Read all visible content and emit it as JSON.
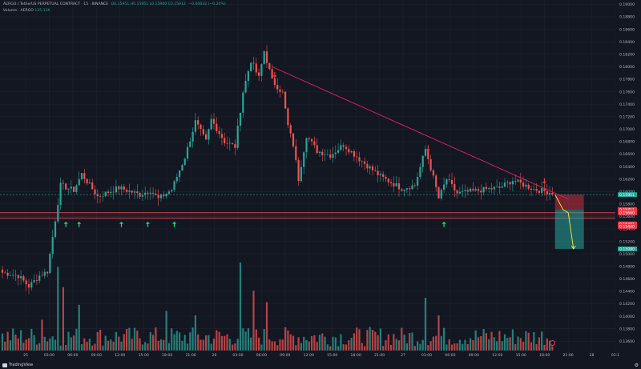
{
  "header": {
    "symbol": "AERGO / TetherUS PERPETUAL CONTRACT · 15 · BINANCE",
    "ohlc": "O0.15951 H0.15951 L0.15900 C0.15912",
    "change": "−0.00032 (−0.20%)",
    "volume_label": "Volume · AERGO",
    "volume_value": "135.11K"
  },
  "colors": {
    "up": "#26a69a",
    "down": "#ef5350",
    "trendline": "#e91e63",
    "up_arrow": "#00e676",
    "down_arrow": "#f23645",
    "target": "#ffeb3b",
    "support": "#f7525f",
    "last_price": "#26a69a"
  },
  "footer": {
    "brand": "TradingView"
  },
  "chart_data": {
    "type": "candlestick",
    "y_axis": {
      "side": "right",
      "ticks": [
        0.19,
        0.188,
        0.186,
        0.184,
        0.182,
        0.18,
        0.178,
        0.176,
        0.174,
        0.172,
        0.17,
        0.168,
        0.166,
        0.164,
        0.162,
        0.16,
        0.158,
        0.156,
        0.154,
        0.152,
        0.15,
        0.148,
        0.146,
        0.144,
        0.142,
        0.14,
        0.138,
        0.136
      ],
      "range": [
        0.1345,
        0.1907
      ],
      "labels": [
        {
          "value": 0.15951,
          "text": "0.15951",
          "color": "#26a69a"
        },
        {
          "value": 0.15711,
          "text": "0.15711",
          "color": "#f23645"
        },
        {
          "value": 0.1566,
          "text": "0.15660",
          "color": "#f23645"
        },
        {
          "value": 0.15481,
          "text": "0.15481",
          "color": "#f23645"
        },
        {
          "value": 0.1544,
          "text": "0.15440",
          "color": "#f23645"
        },
        {
          "value": 0.1508,
          "text": "0.15080",
          "color": "#26a69a"
        }
      ]
    },
    "x_axis": {
      "ticks": [
        "25",
        "03:00",
        "06:00",
        "09:00",
        "12:00",
        "15:00",
        "18:00",
        "21:00",
        "26",
        "03:00",
        "06:00",
        "09:00",
        "12:00",
        "15:00",
        "18:00",
        "21:00",
        "27",
        "03:00",
        "06:00",
        "09:00",
        "12:00",
        "15:00",
        "18:00",
        "21:00",
        "28",
        "03:1"
      ]
    },
    "key_levels": {
      "support_upper": 0.1566,
      "support_lower": 0.1557,
      "dotted_level": 0.15951,
      "short_entry": 0.15711,
      "target": 0.1508
    },
    "trendline": [
      {
        "time": "26 06:00",
        "price": 0.18
      },
      {
        "time": "27 20:00",
        "price": 0.1588
      }
    ],
    "candle_path": [
      {
        "t": 0,
        "price": 0.147
      },
      {
        "t": 6,
        "price": 0.1465
      },
      {
        "t": 10,
        "price": 0.1448
      },
      {
        "t": 14,
        "price": 0.1465
      },
      {
        "t": 17,
        "price": 0.1472
      },
      {
        "t": 22,
        "price": 0.161
      },
      {
        "t": 27,
        "price": 0.1602
      },
      {
        "t": 30,
        "price": 0.1628
      },
      {
        "t": 36,
        "price": 0.1592
      },
      {
        "t": 44,
        "price": 0.1606
      },
      {
        "t": 52,
        "price": 0.1595
      },
      {
        "t": 56,
        "price": 0.1602
      },
      {
        "t": 59,
        "price": 0.1588
      },
      {
        "t": 64,
        "price": 0.1603
      },
      {
        "t": 69,
        "price": 0.1655
      },
      {
        "t": 73,
        "price": 0.1712
      },
      {
        "t": 77,
        "price": 0.168
      },
      {
        "t": 79,
        "price": 0.1715
      },
      {
        "t": 84,
        "price": 0.168
      },
      {
        "t": 88,
        "price": 0.1672
      },
      {
        "t": 91,
        "price": 0.176
      },
      {
        "t": 94,
        "price": 0.181
      },
      {
        "t": 97,
        "price": 0.1782
      },
      {
        "t": 99,
        "price": 0.1825
      },
      {
        "t": 102,
        "price": 0.1778
      },
      {
        "t": 106,
        "price": 0.1758
      },
      {
        "t": 108,
        "price": 0.1705
      },
      {
        "t": 110,
        "price": 0.1675
      },
      {
        "t": 112,
        "price": 0.162
      },
      {
        "t": 115,
        "price": 0.169
      },
      {
        "t": 119,
        "price": 0.1665
      },
      {
        "t": 124,
        "price": 0.1658
      },
      {
        "t": 129,
        "price": 0.1675
      },
      {
        "t": 135,
        "price": 0.1652
      },
      {
        "t": 143,
        "price": 0.1624
      },
      {
        "t": 151,
        "price": 0.1605
      },
      {
        "t": 156,
        "price": 0.161
      },
      {
        "t": 160,
        "price": 0.1668
      },
      {
        "t": 163,
        "price": 0.1622
      },
      {
        "t": 165,
        "price": 0.1589
      },
      {
        "t": 168,
        "price": 0.162
      },
      {
        "t": 172,
        "price": 0.1597
      },
      {
        "t": 182,
        "price": 0.1603
      },
      {
        "t": 188,
        "price": 0.1606
      },
      {
        "t": 193,
        "price": 0.1618
      },
      {
        "t": 201,
        "price": 0.1604
      },
      {
        "t": 208,
        "price": 0.1598
      }
    ],
    "volume_spikes": [
      {
        "t": 15,
        "volume": 0.35
      },
      {
        "t": 21,
        "volume": 0.95
      },
      {
        "t": 23,
        "volume": 0.72
      },
      {
        "t": 29,
        "volume": 0.52
      },
      {
        "t": 62,
        "volume": 0.45
      },
      {
        "t": 73,
        "volume": 0.4
      },
      {
        "t": 90,
        "volume": 1.0
      },
      {
        "t": 95,
        "volume": 0.68
      },
      {
        "t": 100,
        "volume": 0.55
      },
      {
        "t": 160,
        "volume": 0.6
      },
      {
        "t": 165,
        "volume": 0.4
      }
    ],
    "up_arrows_t": [
      24,
      29,
      45,
      55,
      65,
      167
    ],
    "down_arrows_t": [
      103,
      161,
      205
    ],
    "projection": [
      {
        "t": 209,
        "price": 0.15951
      },
      {
        "t": 212,
        "price": 0.15711
      },
      {
        "t": 214,
        "price": 0.1566
      },
      {
        "t": 216,
        "price": 0.1508
      }
    ]
  }
}
